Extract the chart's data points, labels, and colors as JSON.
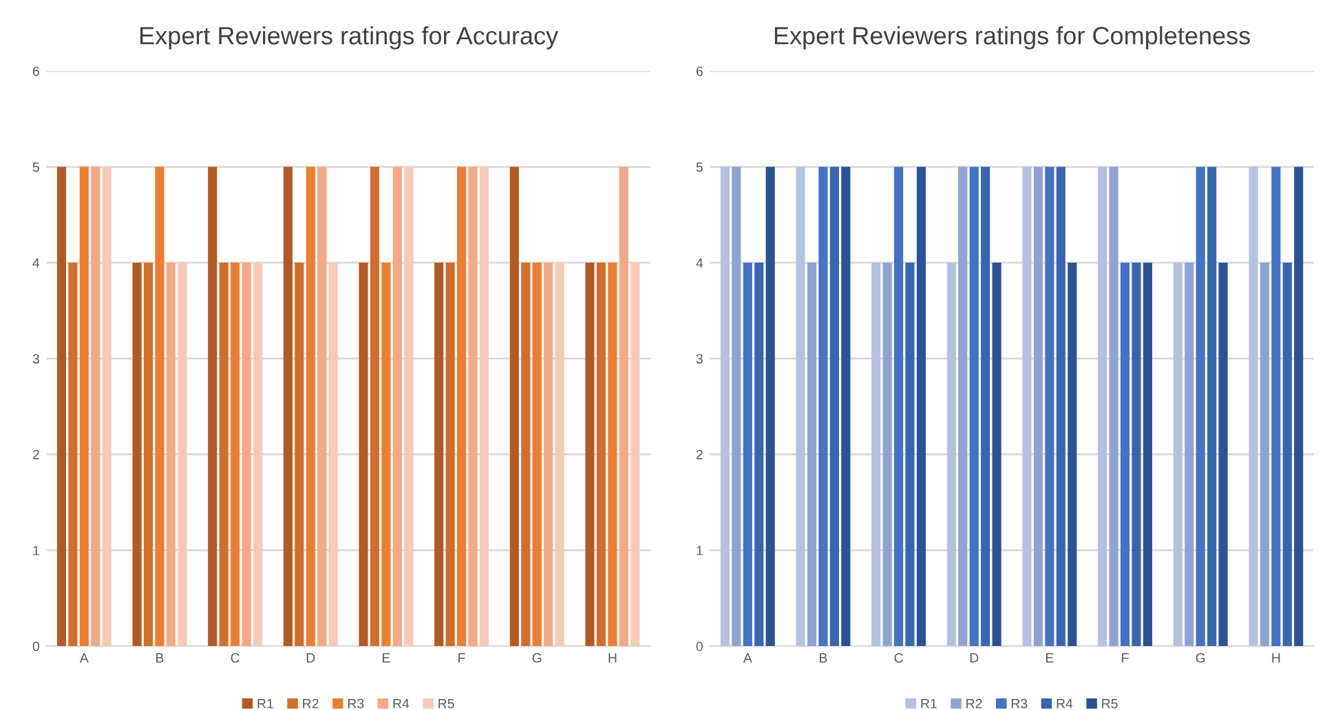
{
  "chart_data": [
    {
      "type": "bar",
      "title": "Expert Reviewers ratings for Accuracy",
      "categories": [
        "A",
        "B",
        "C",
        "D",
        "E",
        "F",
        "G",
        "H"
      ],
      "series": [
        {
          "name": "R1",
          "color": "#b35a24",
          "values": [
            5,
            4,
            5,
            5,
            4,
            4,
            5,
            4
          ]
        },
        {
          "name": "R2",
          "color": "#d36d2c",
          "values": [
            4,
            4,
            4,
            4,
            5,
            4,
            4,
            4
          ]
        },
        {
          "name": "R3",
          "color": "#ed7d31",
          "values": [
            5,
            5,
            4,
            5,
            4,
            5,
            4,
            4
          ]
        },
        {
          "name": "R4",
          "color": "#f4a886",
          "values": [
            5,
            4,
            4,
            5,
            5,
            5,
            4,
            5
          ]
        },
        {
          "name": "R5",
          "color": "#f8c9b5",
          "values": [
            5,
            4,
            4,
            4,
            5,
            5,
            4,
            4
          ]
        }
      ],
      "ylim": [
        0,
        6
      ],
      "yticks": [
        0,
        1,
        2,
        3,
        4,
        5,
        6
      ],
      "grid": "y",
      "legend": "bottom"
    },
    {
      "type": "bar",
      "title": "Expert Reviewers ratings for Completeness",
      "categories": [
        "A",
        "B",
        "C",
        "D",
        "E",
        "F",
        "G",
        "H"
      ],
      "series": [
        {
          "name": "R1",
          "color": "#b4c1e1",
          "values": [
            5,
            5,
            4,
            4,
            5,
            5,
            4,
            5
          ]
        },
        {
          "name": "R2",
          "color": "#8fa3d2",
          "values": [
            5,
            4,
            4,
            5,
            5,
            5,
            4,
            4
          ]
        },
        {
          "name": "R3",
          "color": "#4472c4",
          "values": [
            4,
            5,
            5,
            5,
            5,
            4,
            5,
            5
          ]
        },
        {
          "name": "R4",
          "color": "#3865b0",
          "values": [
            4,
            5,
            4,
            5,
            5,
            4,
            5,
            4
          ]
        },
        {
          "name": "R5",
          "color": "#2b5294",
          "values": [
            5,
            5,
            5,
            4,
            4,
            4,
            4,
            5
          ]
        }
      ],
      "ylim": [
        0,
        6
      ],
      "yticks": [
        0,
        1,
        2,
        3,
        4,
        5,
        6
      ],
      "grid": "y",
      "legend": "bottom"
    }
  ]
}
